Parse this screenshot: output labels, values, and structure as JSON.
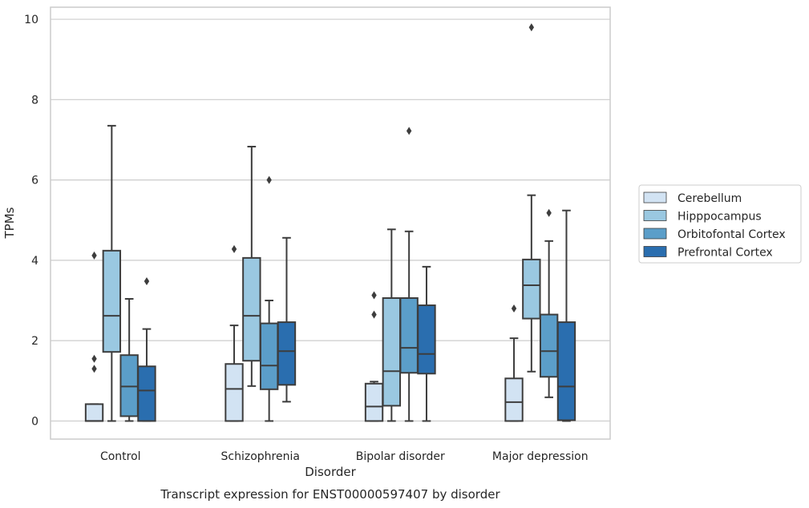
{
  "chart_data": {
    "type": "box",
    "caption": "Transcript expression for ENST00000597407 by disorder",
    "xlabel": "Disorder",
    "ylabel": "TPMs",
    "ylim": [
      -0.45,
      10.3
    ],
    "yticks": [
      0,
      2,
      4,
      6,
      8,
      10
    ],
    "grid": true,
    "legend_position": "right",
    "categories": [
      "Control",
      "Schizophrenia",
      "Bipolar disorder",
      "Major depression"
    ],
    "series": [
      {
        "name": "Cerebellum",
        "color": "#d2e3f3",
        "boxes": [
          {
            "whislo": 0,
            "q1": 0,
            "med": 0,
            "q3": 0.42,
            "whishi": 0.42,
            "fliers": [
              1.3,
              1.55,
              4.12
            ]
          },
          {
            "whislo": 0,
            "q1": 0,
            "med": 0.8,
            "q3": 1.42,
            "whishi": 2.38,
            "fliers": [
              4.28
            ]
          },
          {
            "whislo": 0,
            "q1": 0,
            "med": 0.36,
            "q3": 0.93,
            "whishi": 0.98,
            "fliers": [
              2.65,
              3.13
            ]
          },
          {
            "whislo": 0,
            "q1": 0,
            "med": 0.47,
            "q3": 1.06,
            "whishi": 2.06,
            "fliers": [
              2.8
            ]
          }
        ]
      },
      {
        "name": "Hipppocampus",
        "color": "#9ac8e1",
        "boxes": [
          {
            "whislo": 0,
            "q1": 1.72,
            "med": 2.62,
            "q3": 4.24,
            "whishi": 7.35,
            "fliers": []
          },
          {
            "whislo": 0.87,
            "q1": 1.5,
            "med": 2.62,
            "q3": 4.06,
            "whishi": 6.83,
            "fliers": []
          },
          {
            "whislo": 0,
            "q1": 0.38,
            "med": 1.24,
            "q3": 3.06,
            "whishi": 4.77,
            "fliers": []
          },
          {
            "whislo": 1.23,
            "q1": 2.55,
            "med": 3.38,
            "q3": 4.02,
            "whishi": 5.62,
            "fliers": [
              9.8
            ]
          }
        ]
      },
      {
        "name": "Orbitofontal Cortex",
        "color": "#5b9ec9",
        "boxes": [
          {
            "whislo": 0,
            "q1": 0.12,
            "med": 0.86,
            "q3": 1.64,
            "whishi": 3.04,
            "fliers": []
          },
          {
            "whislo": 0,
            "q1": 0.79,
            "med": 1.38,
            "q3": 2.43,
            "whishi": 3.0,
            "fliers": [
              6.0
            ]
          },
          {
            "whislo": 0,
            "q1": 1.2,
            "med": 1.82,
            "q3": 3.06,
            "whishi": 4.72,
            "fliers": [
              7.22
            ]
          },
          {
            "whislo": 0.59,
            "q1": 1.1,
            "med": 1.74,
            "q3": 2.65,
            "whishi": 4.48,
            "fliers": [
              5.18
            ]
          }
        ]
      },
      {
        "name": "Prefrontal Cortex",
        "color": "#2a6eaf",
        "boxes": [
          {
            "whislo": 0,
            "q1": 0,
            "med": 0.76,
            "q3": 1.36,
            "whishi": 2.29,
            "fliers": [
              3.48
            ]
          },
          {
            "whislo": 0.48,
            "q1": 0.9,
            "med": 1.74,
            "q3": 2.46,
            "whishi": 4.56,
            "fliers": []
          },
          {
            "whislo": 0,
            "q1": 1.18,
            "med": 1.67,
            "q3": 2.88,
            "whishi": 3.84,
            "fliers": []
          },
          {
            "whislo": 0,
            "q1": 0.02,
            "med": 0.86,
            "q3": 2.46,
            "whishi": 5.24,
            "fliers": []
          }
        ]
      }
    ]
  }
}
